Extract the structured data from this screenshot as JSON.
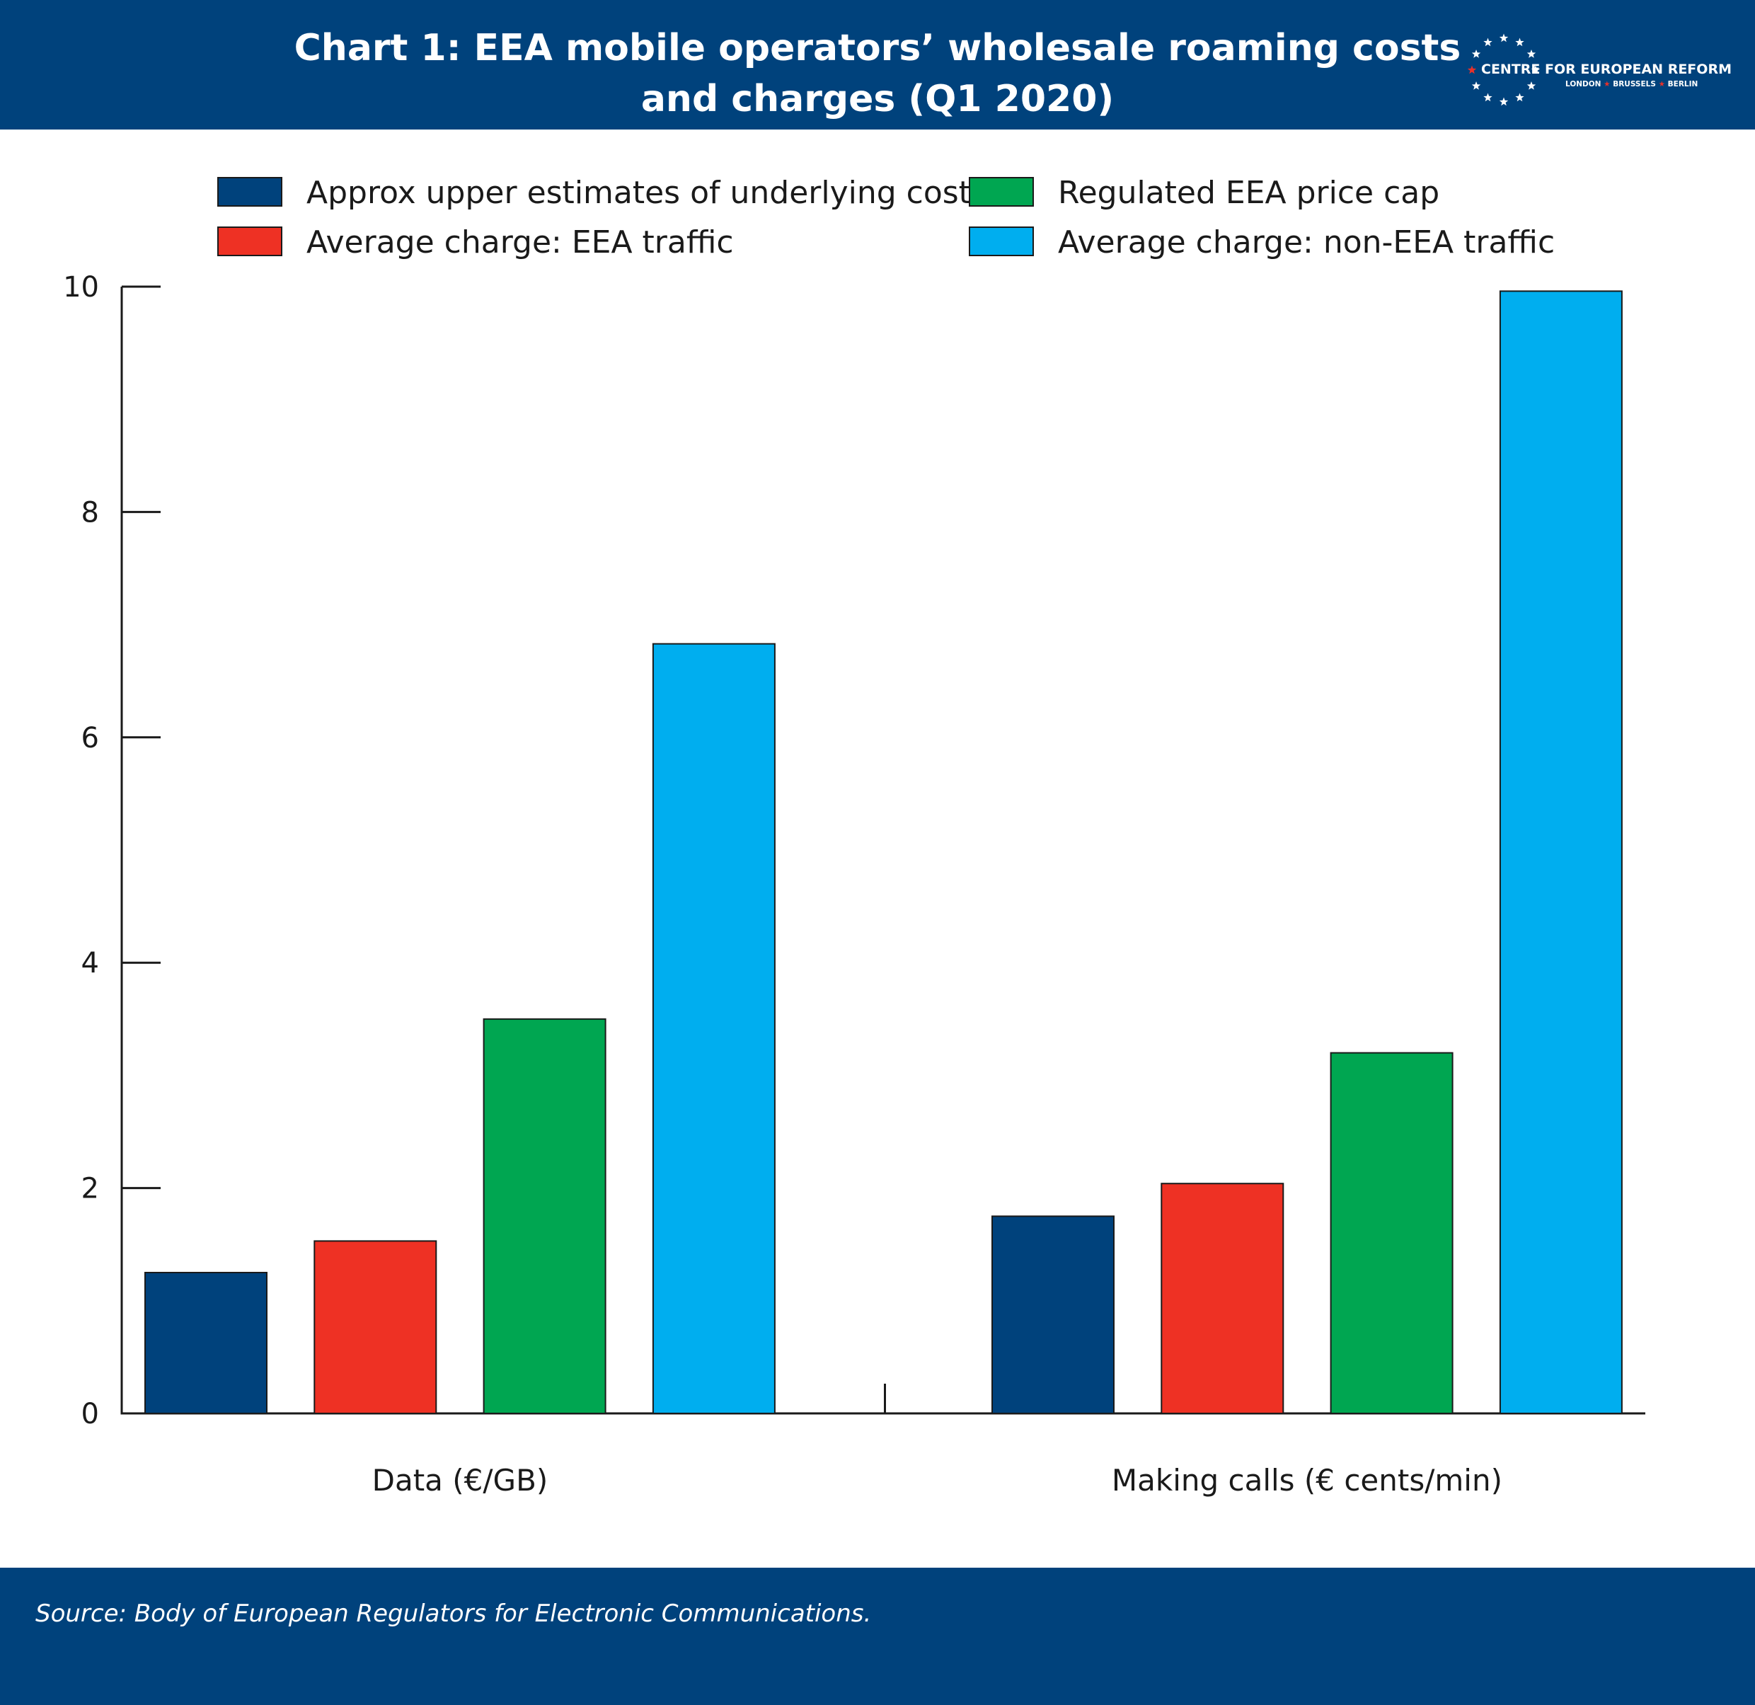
{
  "colors": {
    "header_bg": "#00427c",
    "footer_bg": "#00427c",
    "logo_star": "#e8312a"
  },
  "header": {
    "title_line1": "Chart 1: EEA mobile operators’ wholesale roaming costs",
    "title_line2": "and charges (Q1 2020)",
    "logo": {
      "name": "CENTRE FOR EUROPEAN REFORM",
      "city1": "LONDON",
      "city2": "BRUSSELS",
      "city3": "BERLIN",
      "separator": "★"
    }
  },
  "chart_data": {
    "type": "bar",
    "title": "Chart 1: EEA mobile operators’ wholesale roaming costs and charges (Q1 2020)",
    "categories": [
      "Data (€/GB)",
      "Making calls (€ cents/min)"
    ],
    "series": [
      {
        "name": "Approx upper estimates of underlying cost",
        "color": "#00427c",
        "values": [
          1.25,
          1.75
        ]
      },
      {
        "name": "Average charge: EEA traffic",
        "color": "#ee3124",
        "values": [
          1.53,
          2.04
        ]
      },
      {
        "name": "Regulated EEA price cap",
        "color": "#00a651",
        "values": [
          3.5,
          3.2
        ]
      },
      {
        "name": "Average charge: non-EEA traffic",
        "color": "#00aeef",
        "values": [
          6.83,
          9.96
        ]
      }
    ],
    "ylim": [
      0,
      10
    ],
    "yticks": [
      0,
      2,
      4,
      6,
      8,
      10
    ],
    "xlabel": "",
    "ylabel": "",
    "grid": false,
    "legend_position": "top"
  },
  "footer": {
    "source": "Source: Body of European Regulators for Electronic Communications."
  }
}
